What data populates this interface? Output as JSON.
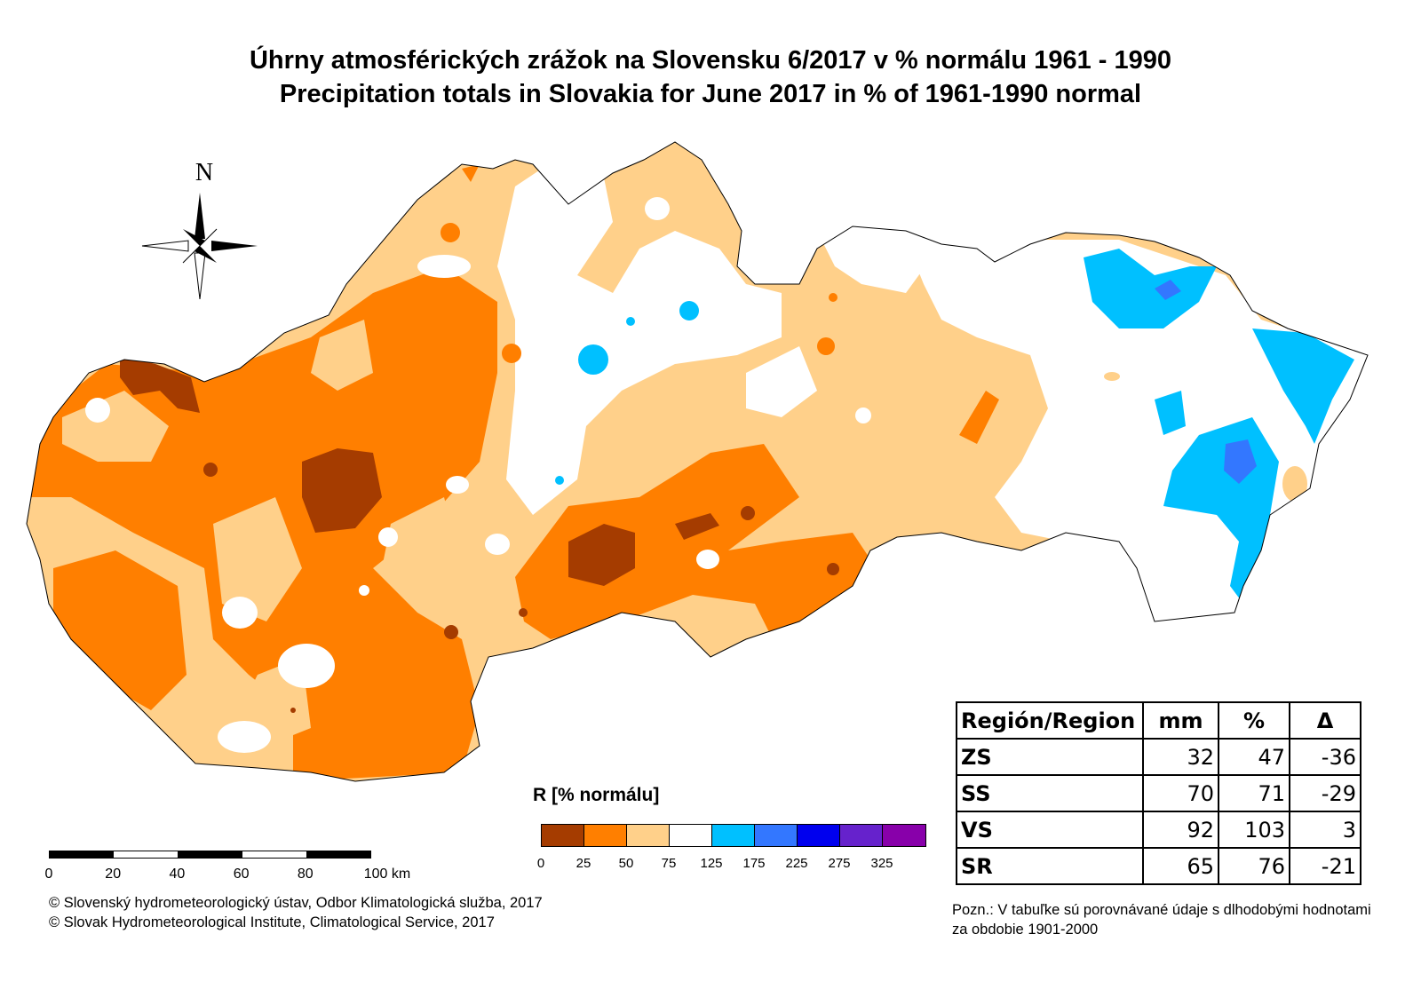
{
  "title_sk": "Úhrny atmosférických zrážok na Slovensku 6/2017 v % normálu 1961 - 1990",
  "title_en": "Precipitation totals in Slovakia for June 2017 in % of 1961-1990 normal",
  "north_label": "N",
  "legend": {
    "title": "R [% normálu]",
    "colors": [
      "#a53c00",
      "#ff7f00",
      "#ffd08a",
      "#ffffff",
      "#00c0ff",
      "#3377ff",
      "#0000ee",
      "#6622cc",
      "#8800aa"
    ],
    "ticks": [
      "0",
      "25",
      "50",
      "75",
      "125",
      "175",
      "225",
      "275",
      "325"
    ]
  },
  "scale_bar": {
    "labels": [
      "0",
      "20",
      "40",
      "60",
      "80",
      "100 km"
    ]
  },
  "credits": [
    "© Slovenský hydrometeorologický ústav, Odbor Klimatologická služba, 2017",
    "© Slovak Hydrometeorological Institute, Climatological Service, 2017"
  ],
  "table": {
    "headers": [
      "Región/Region",
      "mm",
      "%",
      "Δ"
    ],
    "rows": [
      [
        "ZS",
        "32",
        "47",
        "-36"
      ],
      [
        "SS",
        "70",
        "71",
        "-29"
      ],
      [
        "VS",
        "92",
        "103",
        "3"
      ],
      [
        "SR",
        "65",
        "76",
        "-21"
      ]
    ]
  },
  "note": "Pozn.: V tabuľke sú porovnávané údaje s dlhodobými hodnotami za obdobie 1901-2000"
}
